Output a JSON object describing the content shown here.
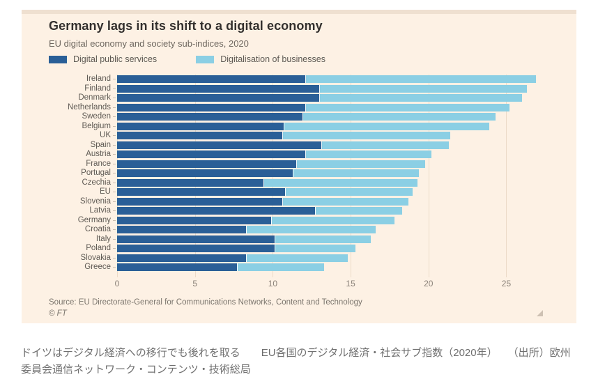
{
  "card": {
    "title": "Germany lags in its shift to a digital economy",
    "subtitle": "EU digital economy and society sub-indices, 2020",
    "source": "Source: EU Directorate-General for Communications Networks, Content and Technology",
    "copyright": "© FT",
    "background": "#fdf1e4"
  },
  "legend": [
    {
      "label": "Digital public services",
      "color": "#2a5f97"
    },
    {
      "label": "Digitalisation of businesses",
      "color": "#8bcfe4"
    }
  ],
  "chart_data": {
    "type": "bar",
    "orientation": "horizontal",
    "stacked": true,
    "title": "Germany lags in its shift to a digital economy",
    "subtitle": "EU digital economy and society sub-indices, 2020",
    "categories": [
      "Ireland",
      "Finland",
      "Denmark",
      "Netherlands",
      "Sweden",
      "Belgium",
      "UK",
      "Spain",
      "Austria",
      "France",
      "Portugal",
      "Czechia",
      "EU",
      "Slovenia",
      "Latvia",
      "Germany",
      "Croatia",
      "Italy",
      "Poland",
      "Slovakia",
      "Greece"
    ],
    "series": [
      {
        "name": "Digital public services",
        "color": "#2a5f97",
        "values": [
          12.1,
          13.0,
          13.0,
          12.1,
          11.9,
          10.7,
          10.6,
          13.1,
          12.1,
          11.5,
          11.3,
          9.4,
          10.8,
          10.6,
          12.7,
          9.9,
          8.3,
          10.1,
          10.1,
          8.3,
          7.7
        ]
      },
      {
        "name": "Digitalisation of businesses",
        "color": "#8bcfe4",
        "values": [
          14.8,
          13.3,
          13.0,
          13.1,
          12.4,
          13.2,
          10.8,
          8.2,
          8.1,
          8.3,
          8.1,
          9.9,
          8.2,
          8.1,
          5.6,
          7.9,
          8.3,
          6.2,
          5.2,
          6.5,
          5.6
        ]
      }
    ],
    "totals": [
      26.9,
      26.3,
      26.0,
      25.2,
      24.3,
      23.9,
      21.4,
      21.3,
      20.2,
      19.8,
      19.4,
      19.3,
      19.0,
      18.7,
      18.3,
      17.8,
      16.6,
      16.3,
      15.3,
      14.8,
      13.3
    ],
    "xlim": [
      0,
      29.5
    ],
    "xticks": [
      0,
      5,
      10,
      15,
      20,
      25
    ],
    "grid": "vertical-faint",
    "legend_position": "top-left"
  },
  "caption": {
    "line1": "ドイツはデジタル経済への移行でも後れを取る　　EU各国のデジタル経済・社会サブ指数（2020年）　　（出所）欧州",
    "line2": "委員会通信ネットワーク・コンテンツ・技術総局"
  }
}
